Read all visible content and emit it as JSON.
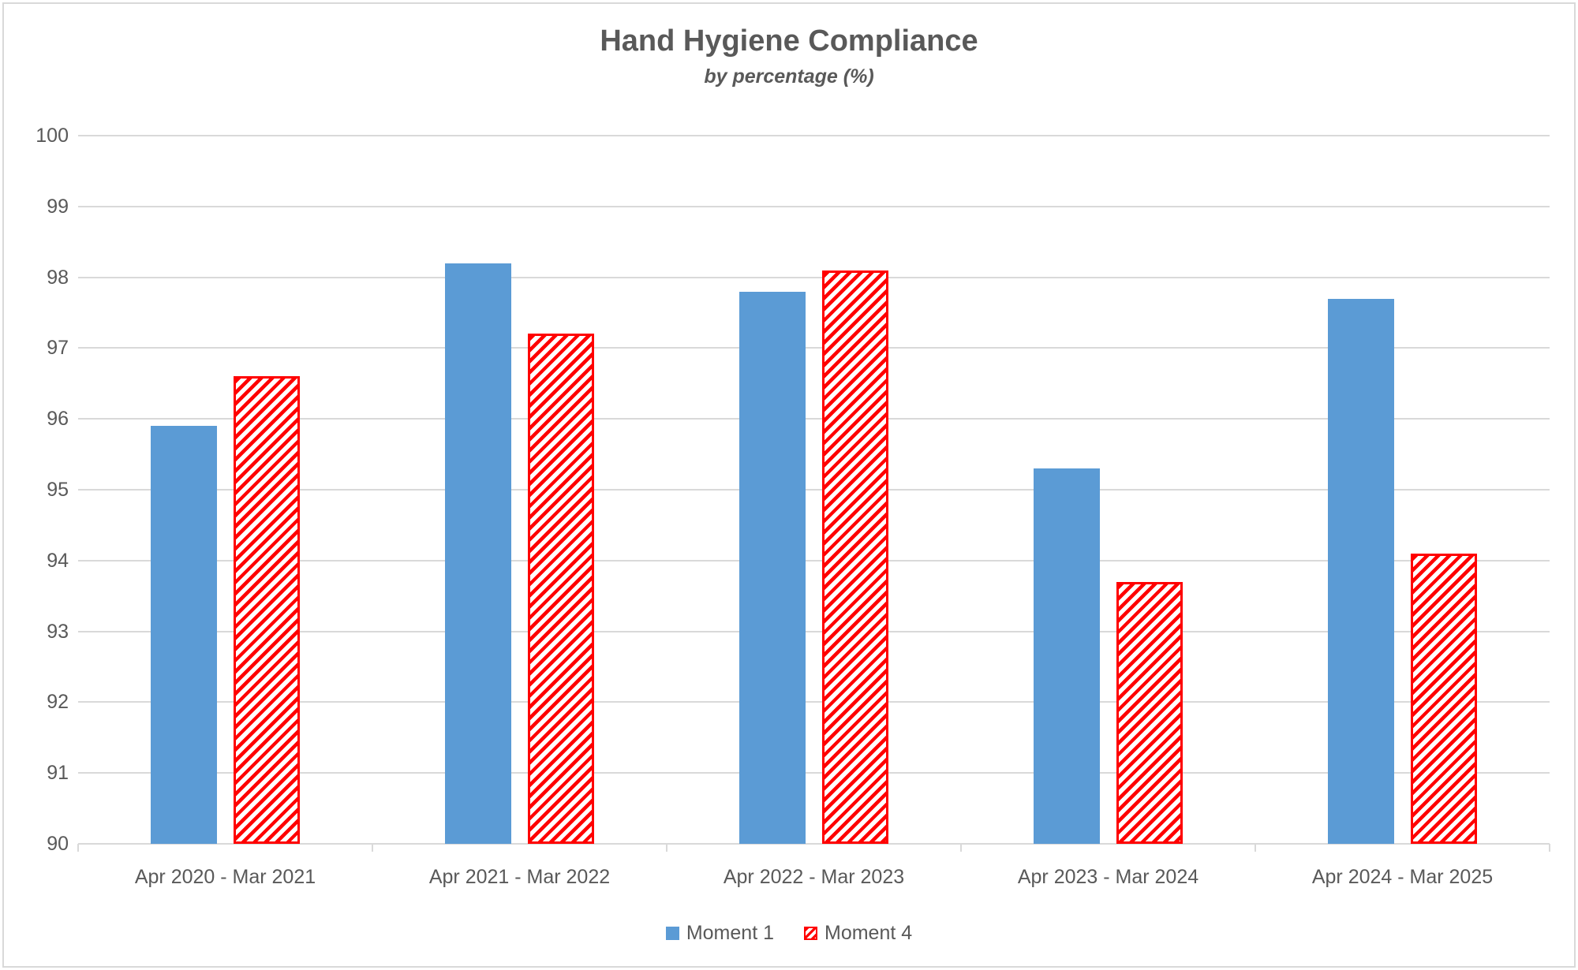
{
  "chart_data": {
    "type": "bar",
    "title": "Hand Hygiene Compliance",
    "subtitle": "by percentage (%)",
    "categories": [
      "Apr 2020 - Mar 2021",
      "Apr 2021 - Mar 2022",
      "Apr 2022 - Mar 2023",
      "Apr 2023 - Mar 2024",
      "Apr 2024 - Mar 2025"
    ],
    "series": [
      {
        "name": "Moment 1",
        "values": [
          95.9,
          98.2,
          97.8,
          95.3,
          97.7
        ],
        "color": "#5B9BD5",
        "pattern": "solid"
      },
      {
        "name": "Moment 4",
        "values": [
          96.6,
          97.2,
          98.1,
          93.7,
          94.1
        ],
        "color": "#FF0000",
        "pattern": "diagonal-hatch"
      }
    ],
    "ylim": [
      90,
      100
    ],
    "yticks": [
      90,
      91,
      92,
      93,
      94,
      95,
      96,
      97,
      98,
      99,
      100
    ],
    "grid": true,
    "legend_position": "bottom",
    "colors": {
      "text": "#595959",
      "gridline": "#d9d9d9",
      "frame_border": "#d9d9d9",
      "background": "#ffffff"
    }
  }
}
